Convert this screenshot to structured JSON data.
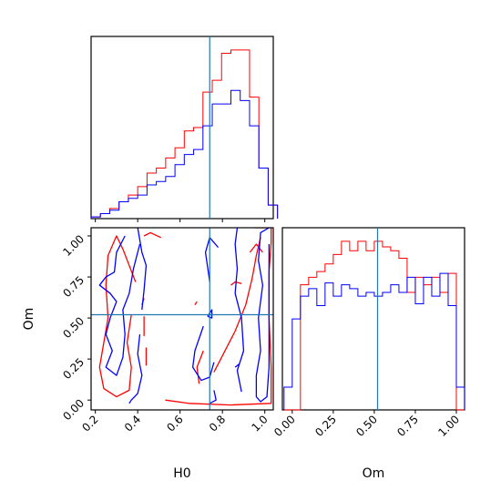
{
  "chart_data": {
    "type": "corner",
    "colors": {
      "series_a": "#ff0000",
      "series_b": "#0000ff",
      "truth": "#1f77b4"
    },
    "truth": {
      "H0": 0.74,
      "Om": 0.52
    },
    "hist_H0": {
      "type": "histogram",
      "bin_edges": [
        0.18,
        0.224,
        0.268,
        0.312,
        0.356,
        0.4,
        0.444,
        0.488,
        0.532,
        0.576,
        0.62,
        0.664,
        0.708,
        0.752,
        0.796,
        0.84,
        0.884,
        0.928,
        0.972,
        1.016,
        1.06
      ],
      "series": [
        {
          "color": "red",
          "values": [
            1,
            3,
            6,
            10,
            14,
            19,
            27,
            30,
            36,
            42,
            52,
            54,
            75,
            82,
            98,
            100,
            100,
            72,
            30,
            8
          ]
        },
        {
          "color": "blue",
          "values": [
            1,
            3,
            5,
            10,
            12,
            14,
            20,
            22,
            25,
            32,
            38,
            41,
            55,
            68,
            68,
            76,
            70,
            55,
            30,
            8
          ]
        }
      ]
    },
    "hist_Om": {
      "type": "histogram",
      "bin_edges": [
        -0.05,
        0.0,
        0.05,
        0.1,
        0.15,
        0.2,
        0.25,
        0.3,
        0.35,
        0.4,
        0.45,
        0.5,
        0.55,
        0.6,
        0.65,
        0.7,
        0.75,
        0.8,
        0.85,
        0.9,
        0.95,
        1.0,
        1.05
      ],
      "series": [
        {
          "color": "red",
          "values": [
            0,
            0,
            66,
            70,
            73,
            77,
            82,
            89,
            84,
            89,
            84,
            89,
            86,
            84,
            80,
            62,
            70,
            66,
            70,
            62,
            72,
            0
          ]
        },
        {
          "color": "blue",
          "values": [
            12,
            48,
            60,
            64,
            55,
            67,
            60,
            66,
            64,
            60,
            62,
            60,
            62,
            66,
            62,
            70,
            56,
            70,
            60,
            72,
            55,
            12
          ]
        }
      ]
    },
    "contour": {
      "type": "contour",
      "xlabel": "H0",
      "ylabel": "Om",
      "red": [
        [
          [
            0.39,
            0.72
          ],
          [
            0.36,
            0.82
          ],
          [
            0.33,
            0.92
          ],
          [
            0.3,
            1.0
          ],
          [
            0.26,
            0.88
          ],
          [
            0.25,
            0.7
          ],
          [
            0.26,
            0.5
          ],
          [
            0.24,
            0.35
          ],
          [
            0.22,
            0.2
          ],
          [
            0.24,
            0.07
          ],
          [
            0.3,
            0.02
          ],
          [
            0.36,
            0.06
          ],
          [
            0.37,
            0.2
          ],
          [
            0.35,
            0.35
          ],
          [
            0.37,
            0.52
          ]
        ],
        [
          [
            0.53,
            0.0
          ],
          [
            0.64,
            -0.02
          ],
          [
            0.84,
            -0.03
          ],
          [
            1.03,
            -0.02
          ],
          [
            1.03,
            0.2
          ],
          [
            1.02,
            0.5
          ],
          [
            1.02,
            0.78
          ],
          [
            1.03,
            0.96
          ],
          [
            1.03,
            1.05
          ],
          [
            0.95,
            1.05
          ]
        ],
        [
          [
            0.76,
            0.17
          ],
          [
            0.8,
            0.27
          ],
          [
            0.86,
            0.42
          ],
          [
            0.91,
            0.58
          ],
          [
            0.94,
            0.74
          ],
          [
            0.96,
            0.88
          ],
          [
            0.98,
            0.99
          ]
        ],
        [
          [
            0.71,
            0.3
          ],
          [
            0.68,
            0.2
          ],
          [
            0.69,
            0.1
          ]
        ],
        [
          [
            0.44,
            0.21
          ],
          [
            0.44,
            0.32
          ]
        ],
        [
          [
            0.43,
            0.39
          ],
          [
            0.43,
            0.51
          ]
        ],
        [
          [
            0.42,
            0.58
          ],
          [
            0.43,
            0.62
          ]
        ],
        [
          [
            0.43,
            1.0
          ],
          [
            0.46,
            1.02
          ],
          [
            0.51,
            0.99
          ]
        ],
        [
          [
            0.84,
            0.7
          ],
          [
            0.86,
            0.72
          ],
          [
            0.89,
            0.71
          ]
        ],
        [
          [
            0.93,
            0.9
          ],
          [
            0.96,
            0.95
          ],
          [
            0.99,
            0.9
          ]
        ],
        [
          [
            0.67,
            0.58
          ],
          [
            0.68,
            0.6
          ]
        ]
      ],
      "blue": [
        [
          [
            0.34,
            1.0
          ],
          [
            0.3,
            0.9
          ],
          [
            0.29,
            0.78
          ],
          [
            0.25,
            0.75
          ],
          [
            0.22,
            0.7
          ],
          [
            0.27,
            0.65
          ],
          [
            0.3,
            0.6
          ],
          [
            0.27,
            0.5
          ],
          [
            0.25,
            0.4
          ],
          [
            0.28,
            0.3
          ],
          [
            0.25,
            0.2
          ],
          [
            0.3,
            0.15
          ],
          [
            0.33,
            0.26
          ],
          [
            0.34,
            0.4
          ],
          [
            0.33,
            0.55
          ],
          [
            0.36,
            0.65
          ],
          [
            0.38,
            0.8
          ],
          [
            0.41,
            0.95
          ]
        ],
        [
          [
            0.4,
            1.05
          ],
          [
            0.42,
            0.9
          ],
          [
            0.44,
            0.82
          ],
          [
            0.43,
            0.67
          ],
          [
            0.42,
            0.55
          ]
        ],
        [
          [
            0.41,
            0.4
          ],
          [
            0.4,
            0.28
          ],
          [
            0.42,
            0.15
          ],
          [
            0.4,
            0.04
          ],
          [
            0.37,
            0.0
          ],
          [
            0.36,
            -0.02
          ]
        ],
        [
          [
            0.74,
            0.72
          ],
          [
            0.72,
            0.9
          ],
          [
            0.74,
            0.99
          ],
          [
            0.78,
            0.93
          ]
        ],
        [
          [
            0.71,
            0.45
          ],
          [
            0.67,
            0.3
          ],
          [
            0.66,
            0.2
          ],
          [
            0.7,
            0.12
          ],
          [
            0.74,
            0.14
          ],
          [
            0.76,
            0.23
          ]
        ],
        [
          [
            0.76,
            0.06
          ],
          [
            0.77,
            0.0
          ],
          [
            0.74,
            -0.02
          ]
        ],
        [
          [
            0.87,
            1.05
          ],
          [
            0.86,
            0.95
          ],
          [
            0.87,
            0.8
          ],
          [
            0.86,
            0.65
          ],
          [
            0.89,
            0.5
          ],
          [
            0.9,
            0.3
          ],
          [
            0.87,
            0.18
          ],
          [
            0.89,
            0.05
          ]
        ],
        [
          [
            1.02,
            1.05
          ],
          [
            0.98,
            1.02
          ],
          [
            0.97,
            0.85
          ],
          [
            0.99,
            0.7
          ],
          [
            0.97,
            0.5
          ],
          [
            0.98,
            0.3
          ],
          [
            0.96,
            0.15
          ],
          [
            0.96,
            0.02
          ],
          [
            0.98,
            -0.01
          ],
          [
            1.01,
            0.02
          ],
          [
            1.02,
            0.2
          ],
          [
            1.02,
            0.6
          ],
          [
            1.02,
            0.95
          ]
        ],
        [
          [
            0.73,
            0.51
          ],
          [
            0.75,
            0.55
          ],
          [
            0.75,
            0.5
          ],
          [
            0.73,
            0.51
          ]
        ],
        [
          [
            0.86,
            0.2
          ],
          [
            0.88,
            0.22
          ]
        ]
      ]
    },
    "axes": {
      "H0": {
        "lim": [
          0.18,
          1.04
        ],
        "ticks": [
          0.2,
          0.4,
          0.6,
          0.8,
          1.0
        ],
        "tick_labels": [
          "0.2",
          "0.4",
          "0.6",
          "0.8",
          "1.0"
        ]
      },
      "Om": {
        "lim": [
          -0.06,
          1.05
        ],
        "ticks": [
          0.0,
          0.25,
          0.5,
          0.75,
          1.0
        ],
        "tick_labels": [
          "0.00",
          "0.25",
          "0.50",
          "0.75",
          "1.00"
        ]
      }
    },
    "xlabels": {
      "H0": "H0",
      "Om": "Om"
    },
    "ylabels": {
      "Om": "Om"
    }
  }
}
